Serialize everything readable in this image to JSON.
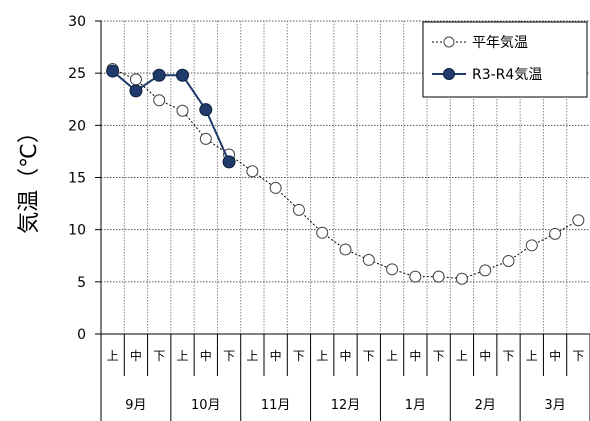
{
  "chart_data": {
    "type": "line",
    "ylabel": "気温（℃）",
    "ylim": [
      0,
      30
    ],
    "yticks": [
      "0",
      "5",
      "10",
      "15",
      "20",
      "25",
      "30"
    ],
    "grid": true,
    "legend_position": "top-right",
    "categories": [
      "上",
      "中",
      "下",
      "上",
      "中",
      "下",
      "上",
      "中",
      "下",
      "上",
      "中",
      "下",
      "上",
      "中",
      "下",
      "上",
      "中",
      "下",
      "上",
      "中",
      "下"
    ],
    "months": [
      "9月",
      "10月",
      "11月",
      "12月",
      "1月",
      "2月",
      "3月"
    ],
    "series": [
      {
        "name": "平年気温",
        "color": "#000000",
        "marker": "open-circle",
        "line_style": "dotted",
        "values": [
          25.4,
          24.4,
          22.4,
          21.4,
          18.7,
          17.2,
          15.6,
          14.0,
          11.9,
          9.7,
          8.1,
          7.1,
          6.2,
          5.5,
          5.5,
          5.3,
          6.1,
          7.0,
          8.5,
          9.6,
          10.9
        ]
      },
      {
        "name": "R3-R4気温",
        "color": "#1f3a6b",
        "marker": "filled-circle",
        "line_style": "solid",
        "values": [
          25.2,
          23.3,
          24.8,
          24.8,
          21.5,
          16.5,
          null,
          null,
          null,
          null,
          null,
          null,
          null,
          null,
          null,
          null,
          null,
          null,
          null,
          null,
          null
        ]
      }
    ]
  }
}
